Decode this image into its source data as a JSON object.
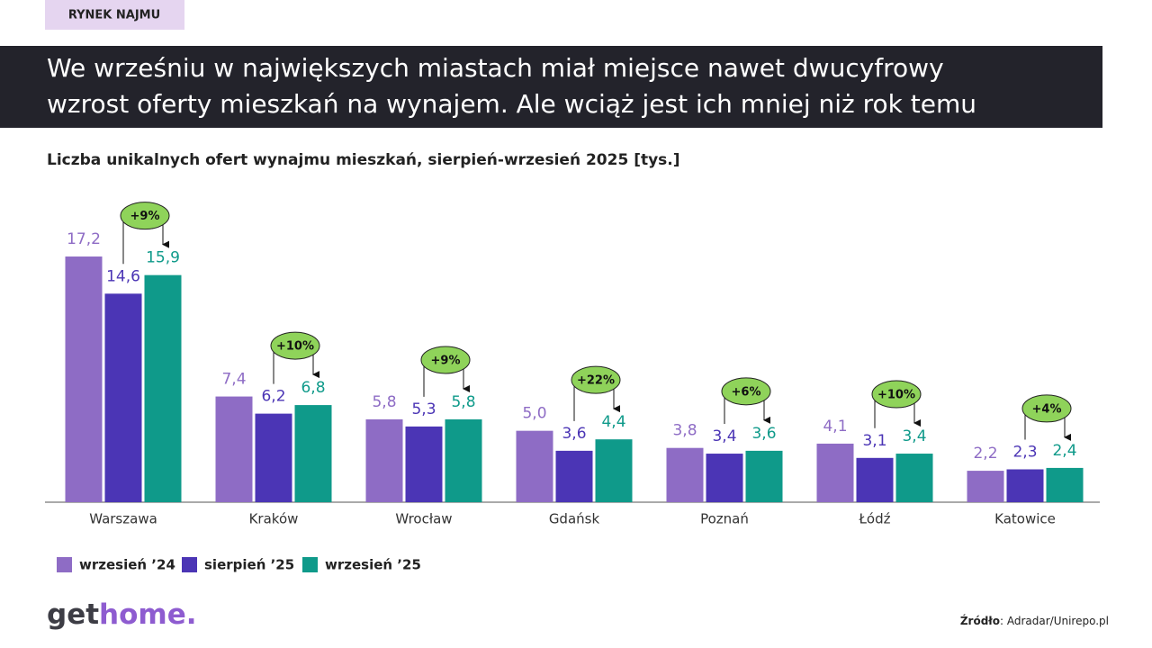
{
  "chart_data": {
    "type": "bar",
    "tag": "RYNEK NAJMU",
    "title": [
      "We wrześniu w największych miastach miał miejsce nawet dwucyfrowy",
      "wzrost oferty mieszkań na wynajem. Ale wciąż jest ich mniej niż rok temu"
    ],
    "subtitle": "Liczba unikalnych ofert wynajmu mieszkań, sierpień-wrzesień 2025  [tys.]",
    "categories": [
      "Warszawa",
      "Kraków",
      "Wrocław",
      "Gdańsk",
      "Poznań",
      "Łódź",
      "Katowice"
    ],
    "series": [
      {
        "name": "wrzesień ’24",
        "color": "#8e6cc5",
        "values": [
          17.2,
          7.4,
          5.8,
          5.0,
          3.8,
          4.1,
          2.2
        ],
        "value_labels": [
          "17,2",
          "7,4",
          "5,8",
          "5,0",
          "3,8",
          "4,1",
          "2,2"
        ]
      },
      {
        "name": "sierpień ’25",
        "color": "#4b35b5",
        "values": [
          14.6,
          6.2,
          5.3,
          3.6,
          3.4,
          3.1,
          2.3
        ],
        "value_labels": [
          "14,6",
          "6,2",
          "5,3",
          "3,6",
          "3,4",
          "3,1",
          "2,3"
        ]
      },
      {
        "name": "wrzesień ’25",
        "color": "#0f9a8a",
        "values": [
          15.9,
          6.8,
          5.8,
          4.4,
          3.6,
          3.4,
          2.4
        ],
        "value_labels": [
          "15,9",
          "6,8",
          "5,8",
          "4,4",
          "3,6",
          "3,4",
          "2,4"
        ]
      }
    ],
    "changes": [
      {
        "value": 9,
        "label": "+9%"
      },
      {
        "value": 10,
        "label": "+10%"
      },
      {
        "value": 9,
        "label": "+9%"
      },
      {
        "value": 22,
        "label": "+22%"
      },
      {
        "value": 6,
        "label": "+6%"
      },
      {
        "value": 10,
        "label": "+10%"
      },
      {
        "value": 4,
        "label": "+4%"
      }
    ],
    "change_color": "#8fd35a",
    "ylim": [
      0,
      20
    ],
    "logo": [
      "get",
      "home."
    ],
    "source": {
      "label": "Źródło",
      "text": ": Adradar/Unirepo.pl"
    }
  }
}
